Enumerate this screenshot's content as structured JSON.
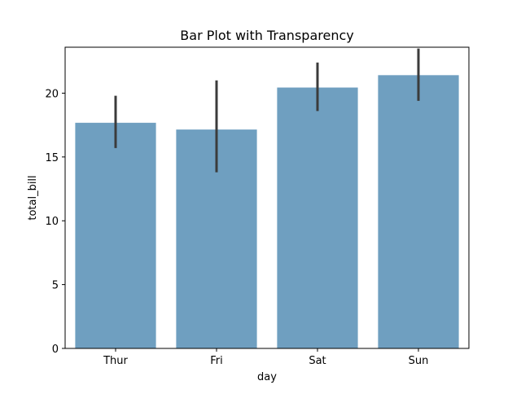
{
  "chart_data": {
    "type": "bar",
    "title": "Bar Plot with Transparency",
    "xlabel": "day",
    "ylabel": "total_bill",
    "categories": [
      "Thur",
      "Fri",
      "Sat",
      "Sun"
    ],
    "values": [
      17.68,
      17.15,
      20.44,
      21.41
    ],
    "error_low": [
      15.7,
      13.8,
      18.6,
      19.4
    ],
    "error_high": [
      19.8,
      21.0,
      22.4,
      23.5
    ],
    "ylim": [
      0,
      23.6
    ],
    "yticks": [
      0,
      5,
      10,
      15,
      20
    ],
    "bar_color": "#6f9fc0",
    "error_color": "#3b3b3b",
    "grid": false,
    "legend": "none"
  }
}
